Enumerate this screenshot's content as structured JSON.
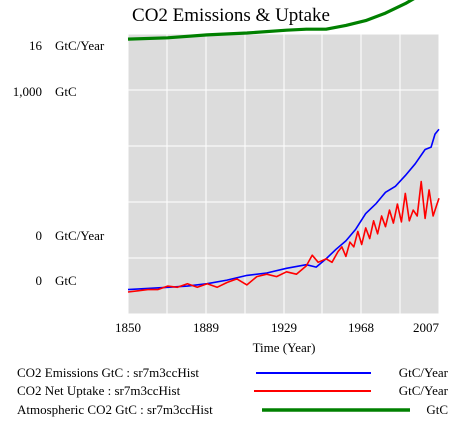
{
  "chart_data": {
    "type": "line",
    "title": "CO2 Emissions & Uptake",
    "xlabel": "Time (Year)",
    "x_ticks": [
      "1850",
      "1889",
      "1929",
      "1968",
      "2007"
    ],
    "xlim": [
      1850,
      2007
    ],
    "grid": true,
    "legend_position": "bottom",
    "y_axes": [
      {
        "top_label": "16",
        "top_unit": "GtC/Year",
        "bottom_label": "0",
        "bottom_unit": "GtC/Year",
        "ylim": [
          0,
          16
        ]
      },
      {
        "top_label": "1,000",
        "top_unit": "GtC",
        "bottom_label": "0",
        "bottom_unit": "GtC",
        "ylim": [
          0,
          1000
        ]
      }
    ],
    "series": [
      {
        "name": "CO2 Emissions GtC : sr7m3ccHist",
        "unit": "GtC/Year",
        "color": "#0000ff",
        "axis": 0,
        "x": [
          1850,
          1860,
          1870,
          1880,
          1890,
          1900,
          1910,
          1920,
          1930,
          1940,
          1945,
          1950,
          1955,
          1960,
          1965,
          1970,
          1975,
          1980,
          1985,
          1990,
          1995,
          2000,
          2003,
          2005,
          2007
        ],
        "y": [
          -4.6,
          -4.5,
          -4.4,
          -4.3,
          -4.1,
          -3.8,
          -3.4,
          -3.2,
          -2.8,
          -2.5,
          -2.7,
          -2.0,
          -1.2,
          -0.5,
          0.5,
          1.8,
          2.6,
          3.6,
          4.1,
          5.0,
          6.0,
          7.2,
          7.4,
          8.5,
          8.9
        ]
      },
      {
        "name": "CO2 Net Uptake : sr7m3ccHist",
        "unit": "GtC/Year",
        "color": "#ff0000",
        "axis": 0,
        "x": [
          1850,
          1855,
          1860,
          1865,
          1870,
          1875,
          1880,
          1885,
          1890,
          1895,
          1900,
          1905,
          1910,
          1915,
          1920,
          1925,
          1930,
          1935,
          1940,
          1943,
          1946,
          1950,
          1953,
          1956,
          1958,
          1960,
          1962,
          1964,
          1966,
          1968,
          1970,
          1972,
          1974,
          1976,
          1978,
          1980,
          1982,
          1984,
          1986,
          1988,
          1990,
          1992,
          1994,
          1996,
          1998,
          2000,
          2002,
          2004,
          2006,
          2007
        ],
        "y": [
          -4.8,
          -4.7,
          -4.6,
          -4.6,
          -4.3,
          -4.4,
          -4.1,
          -4.4,
          -4.1,
          -4.4,
          -4.0,
          -3.7,
          -4.2,
          -3.5,
          -3.3,
          -3.5,
          -3.1,
          -3.3,
          -2.6,
          -1.7,
          -2.3,
          -2.0,
          -2.3,
          -1.4,
          -1.0,
          -1.8,
          -0.6,
          -1.0,
          0.3,
          -0.8,
          0.6,
          -0.3,
          1.2,
          0.1,
          1.6,
          0.7,
          2.1,
          1.0,
          2.6,
          1.1,
          3.5,
          1.2,
          2.1,
          1.6,
          4.5,
          1.4,
          3.8,
          1.6,
          2.6,
          3.1
        ]
      },
      {
        "name": "Atmospheric CO2 GtC : sr7m3ccHist",
        "unit": "GtC",
        "color": "#008000",
        "axis": 1,
        "x": [
          1850,
          1870,
          1890,
          1910,
          1930,
          1940,
          1950,
          1960,
          1970,
          1980,
          1990,
          2000,
          2007
        ],
        "y": [
          1268,
          1275,
          1290,
          1300,
          1315,
          1320,
          1320,
          1340,
          1365,
          1405,
          1455,
          1515,
          1560
        ]
      }
    ]
  }
}
